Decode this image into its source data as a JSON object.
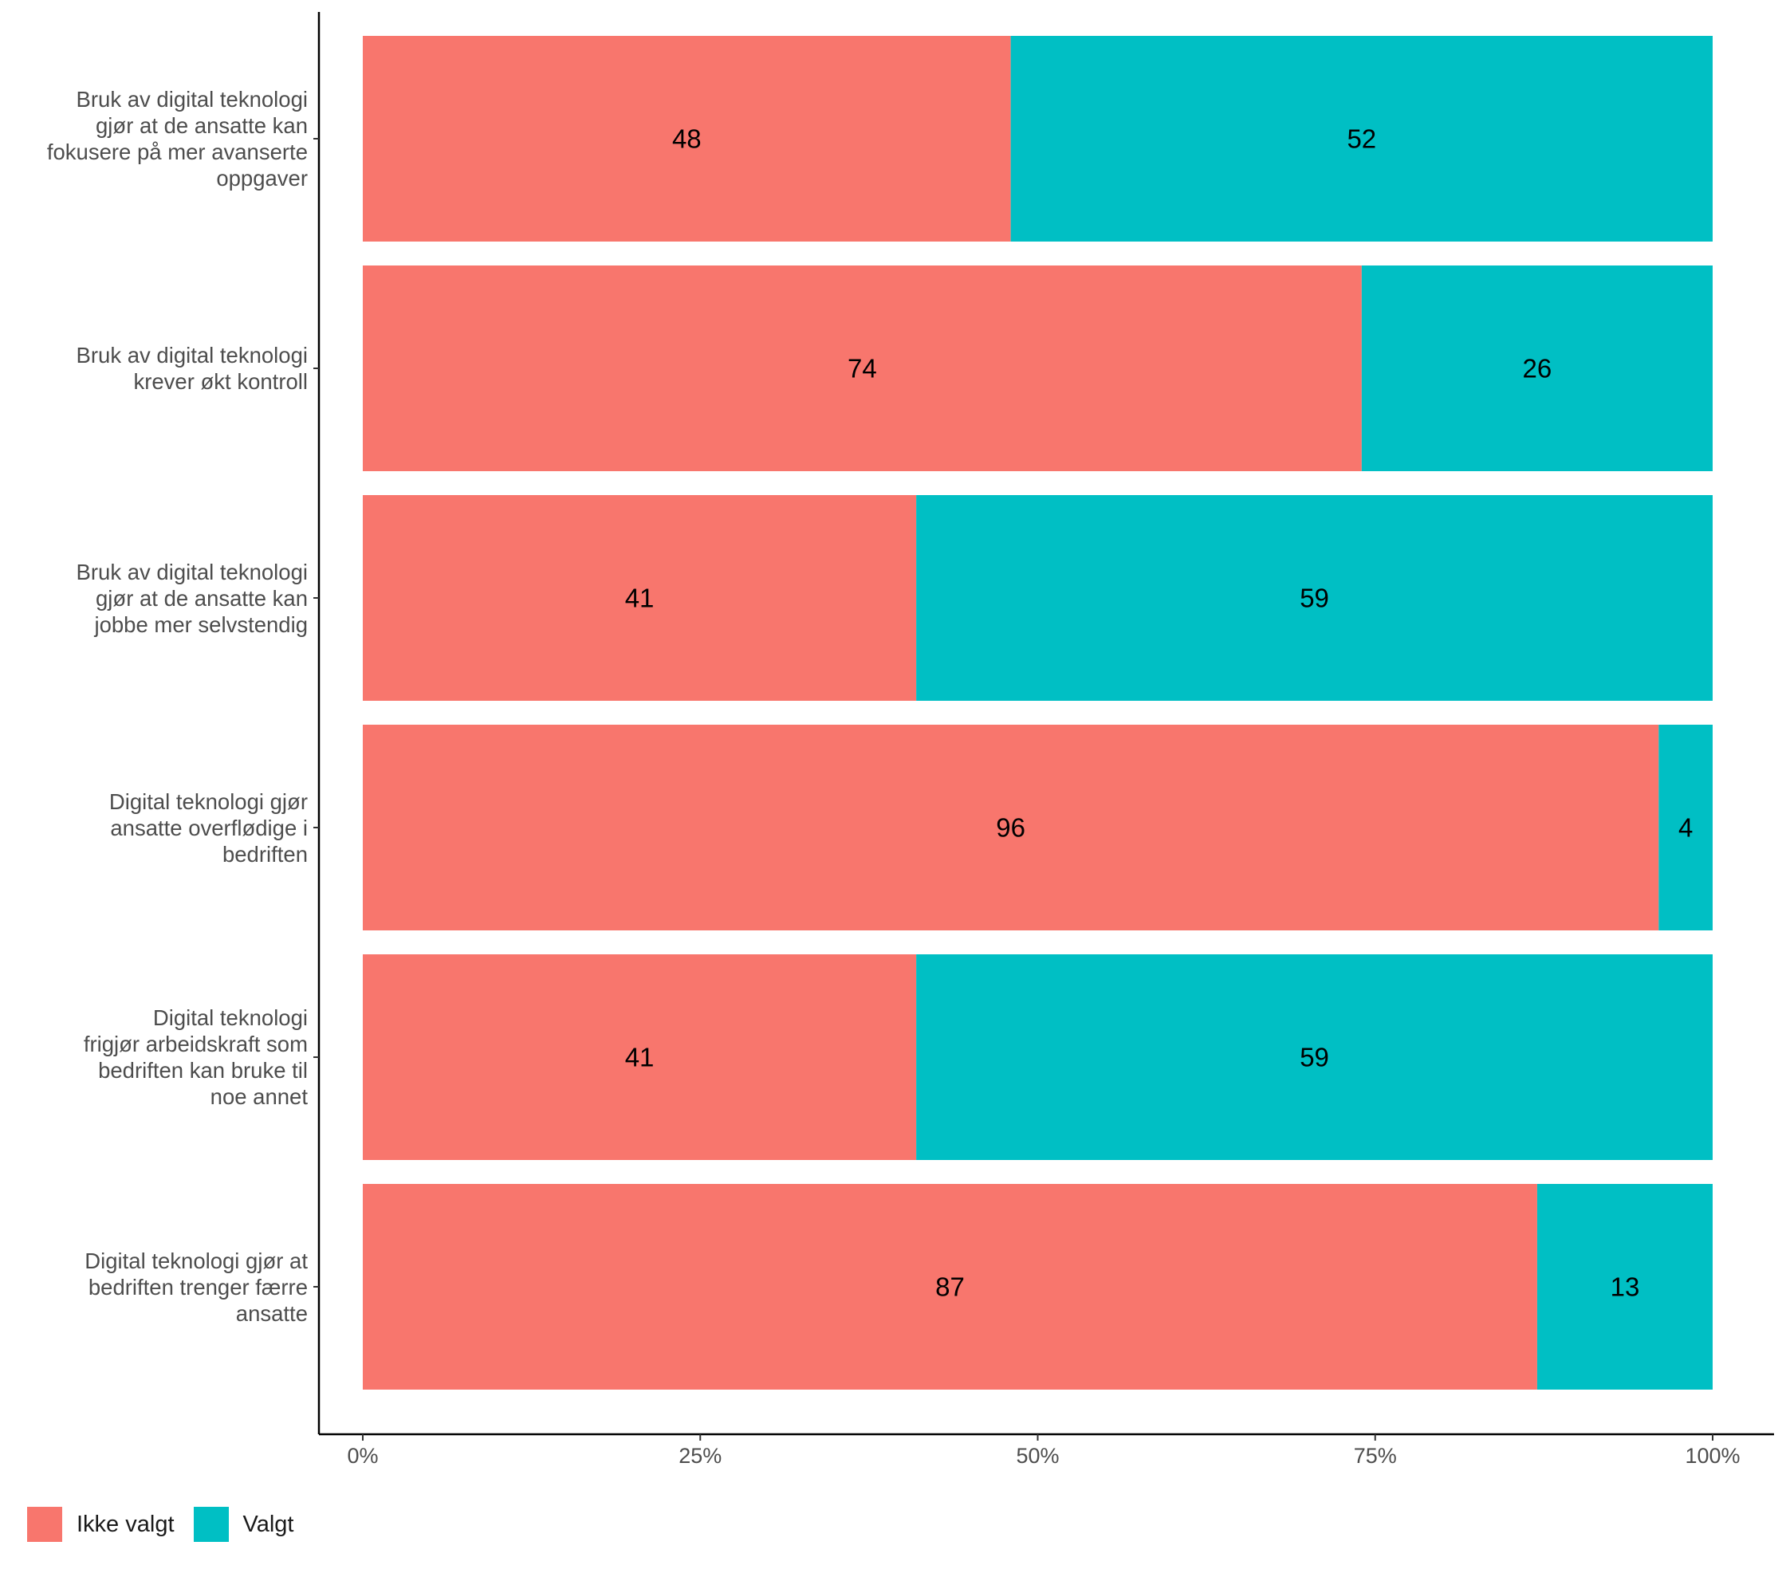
{
  "chart_data": {
    "type": "bar",
    "orientation": "horizontal",
    "stacked": true,
    "percent_scale": true,
    "categories": [
      "Bruk av digital teknologi gjør at de ansatte kan fokusere på mer avanserte oppgaver",
      "Bruk av digital teknologi krever økt kontroll",
      "Bruk av digital teknologi gjør at de ansatte kan jobbe mer selvstendig",
      "Digital teknologi gjør ansatte overflødige i bedriften",
      "Digital teknologi frigjør arbeidskraft som bedriften kan bruke til noe annet",
      "Digital teknologi gjør at bedriften trenger færre ansatte"
    ],
    "category_lines": [
      [
        "Bruk av digital teknologi",
        "gjør at de ansatte kan",
        "fokusere på mer avanserte",
        "oppgaver"
      ],
      [
        "Bruk av digital teknologi",
        "krever økt kontroll"
      ],
      [
        "Bruk av digital teknologi",
        "gjør at de ansatte kan",
        "jobbe mer selvstendig"
      ],
      [
        "Digital teknologi gjør",
        "ansatte overflødige i",
        "bedriften"
      ],
      [
        "Digital teknologi",
        "frigjør arbeidskraft som",
        "bedriften kan bruke til",
        "noe annet"
      ],
      [
        "Digital teknologi gjør at",
        "bedriften trenger færre",
        "ansatte"
      ]
    ],
    "series": [
      {
        "name": "Ikke valgt",
        "color": "#F8766D",
        "values": [
          48,
          74,
          41,
          96,
          41,
          87
        ]
      },
      {
        "name": "Valgt",
        "color": "#00BFC4",
        "values": [
          52,
          26,
          59,
          4,
          59,
          13
        ]
      }
    ],
    "xticks": [
      "0%",
      "25%",
      "50%",
      "75%",
      "100%"
    ],
    "xtick_values": [
      0,
      25,
      50,
      75,
      100
    ],
    "xlim": [
      0,
      100
    ],
    "xlabel": "",
    "ylabel": "",
    "title": "",
    "grid": false,
    "legend_position": "bottom-left"
  }
}
